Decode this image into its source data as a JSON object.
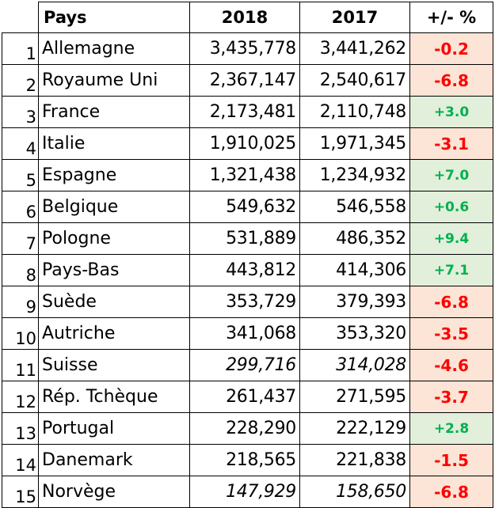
{
  "header": {
    "rank": "",
    "pays": "Pays",
    "y2018": "2018",
    "y2017": "2017",
    "change": "+/- %"
  },
  "rows": [
    {
      "rank": "1",
      "pays": "Allemagne",
      "v2018": "3,435,778",
      "v2017": "3,441,262",
      "change": "-0.2",
      "sign": "neg",
      "italic": false
    },
    {
      "rank": "2",
      "pays": "Royaume Uni",
      "v2018": "2,367,147",
      "v2017": "2,540,617",
      "change": "-6.8",
      "sign": "neg",
      "italic": false
    },
    {
      "rank": "3",
      "pays": "France",
      "v2018": "2,173,481",
      "v2017": "2,110,748",
      "change": "+3.0",
      "sign": "pos",
      "italic": false
    },
    {
      "rank": "4",
      "pays": "Italie",
      "v2018": "1,910,025",
      "v2017": "1,971,345",
      "change": "-3.1",
      "sign": "neg",
      "italic": false
    },
    {
      "rank": "5",
      "pays": "Espagne",
      "v2018": "1,321,438",
      "v2017": "1,234,932",
      "change": "+7.0",
      "sign": "pos",
      "italic": false
    },
    {
      "rank": "6",
      "pays": "Belgique",
      "v2018": "549,632",
      "v2017": "546,558",
      "change": "+0.6",
      "sign": "pos",
      "italic": false
    },
    {
      "rank": "7",
      "pays": "Pologne",
      "v2018": "531,889",
      "v2017": "486,352",
      "change": "+9.4",
      "sign": "pos",
      "italic": false
    },
    {
      "rank": "8",
      "pays": "Pays-Bas",
      "v2018": "443,812",
      "v2017": "414,306",
      "change": "+7.1",
      "sign": "pos",
      "italic": false
    },
    {
      "rank": "9",
      "pays": "Suède",
      "v2018": "353,729",
      "v2017": "379,393",
      "change": "-6.8",
      "sign": "neg",
      "italic": false
    },
    {
      "rank": "10",
      "pays": "Autriche",
      "v2018": "341,068",
      "v2017": "353,320",
      "change": "-3.5",
      "sign": "neg",
      "italic": false
    },
    {
      "rank": "11",
      "pays": "Suisse",
      "v2018": "299,716",
      "v2017": "314,028",
      "change": "-4.6",
      "sign": "neg",
      "italic": true
    },
    {
      "rank": "12",
      "pays": "Rép. Tchèque",
      "v2018": "261,437",
      "v2017": "271,595",
      "change": "-3.7",
      "sign": "neg",
      "italic": false
    },
    {
      "rank": "13",
      "pays": "Portugal",
      "v2018": "228,290",
      "v2017": "222,129",
      "change": "+2.8",
      "sign": "pos",
      "italic": false
    },
    {
      "rank": "14",
      "pays": "Danemark",
      "v2018": "218,565",
      "v2017": "221,838",
      "change": "-1.5",
      "sign": "neg",
      "italic": false
    },
    {
      "rank": "15",
      "pays": "Norvège",
      "v2018": "147,929",
      "v2017": "158,650",
      "change": "-6.8",
      "sign": "neg",
      "italic": true
    }
  ],
  "colors": {
    "neg_bg": "#fce4d6",
    "neg_fg": "#ff0000",
    "pos_bg": "#e2efda",
    "pos_fg": "#00b050"
  }
}
